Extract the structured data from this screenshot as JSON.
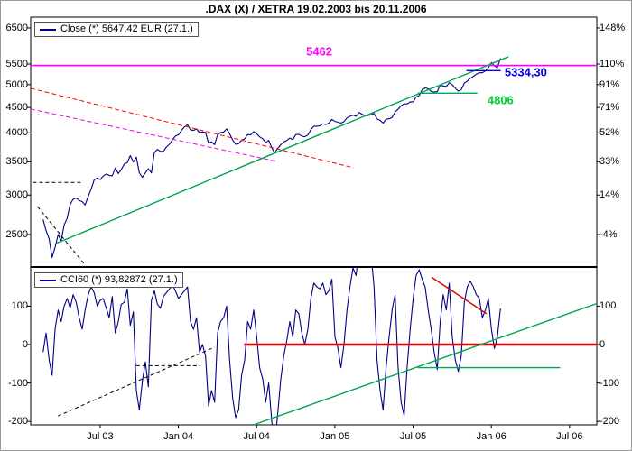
{
  "title": ".DAX (X) / XETRA 19.02.2003 bis 20.11.2006",
  "colors": {
    "price_line": "#000080",
    "cci_line": "#000080",
    "magenta": "#ff00ff",
    "green_line": "#00a651",
    "green_label": "#00cc33",
    "red": "#ff0000",
    "dark_red": "#cc0000",
    "blue_label": "#0000ee",
    "axis_text": "#000000"
  },
  "x_axis": {
    "xlim": [
      2003.056,
      2006.674
    ],
    "ticks": [
      {
        "t": 2003.5,
        "label": "Jul 03"
      },
      {
        "t": 2004.0,
        "label": "Jan 04"
      },
      {
        "t": 2004.5,
        "label": "Jul 04"
      },
      {
        "t": 2005.0,
        "label": "Jan 05"
      },
      {
        "t": 2005.5,
        "label": "Jul 05"
      },
      {
        "t": 2006.0,
        "label": "Jan 06"
      },
      {
        "t": 2006.5,
        "label": "Jul 06"
      }
    ]
  },
  "chart_data": [
    {
      "type": "line",
      "name": "dax-close",
      "title": ".DAX (X) / XETRA 19.02.2003 bis 20.11.2006",
      "legend": "Close (*) 5647,42 EUR (27.1.)",
      "last_value": "5647,42 EUR",
      "last_date": "27.1.",
      "yscale": "log",
      "ylim": [
        2151,
        6832
      ],
      "x_start": 2003.135,
      "x_step": 0.0192308,
      "line_color": "#000080",
      "y_ticks": [
        {
          "v": 6500,
          "left": "6500",
          "right": "148%"
        },
        {
          "v": 5500,
          "left": "5500",
          "right": "110%"
        },
        {
          "v": 5000,
          "left": "5000",
          "right": "91%"
        },
        {
          "v": 4500,
          "left": "4500",
          "right": "71%"
        },
        {
          "v": 4000,
          "left": "4000",
          "right": "52%"
        },
        {
          "v": 3500,
          "left": "3500",
          "right": "33%"
        },
        {
          "v": 3000,
          "left": "3000",
          "right": "14%"
        },
        {
          "v": 2500,
          "left": "2500",
          "right": "-4%"
        }
      ],
      "values": [
        2679,
        2547,
        2450,
        2247,
        2356,
        2501,
        2423,
        2610,
        2697,
        2871,
        2942,
        2958,
        2927,
        2911,
        2866,
        2982,
        3084,
        3219,
        3246,
        3221,
        3276,
        3307,
        3287,
        3279,
        3399,
        3314,
        3376,
        3465,
        3484,
        3601,
        3494,
        3576,
        3326,
        3256,
        3324,
        3388,
        3324,
        3655,
        3706,
        3670,
        3674,
        3746,
        3796,
        3876,
        3940,
        3965,
        4045,
        4111,
        4151,
        4058,
        4045,
        4074,
        4003,
        4018,
        4007,
        3813,
        3836,
        3788,
        3966,
        4007,
        4016,
        4075,
        3985,
        3869,
        3794,
        3803,
        3867,
        3890,
        3971,
        3963,
        4022,
        3983,
        3926,
        3895,
        3823,
        3866,
        3731,
        3646,
        3721,
        3786,
        3837,
        3861,
        3906,
        3875,
        3968,
        3972,
        3942,
        3929,
        3960,
        4063,
        4126,
        4126,
        4133,
        4171,
        4158,
        4185,
        4256,
        4217,
        4204,
        4184,
        4212,
        4288,
        4318,
        4343,
        4318,
        4394,
        4363,
        4324,
        4336,
        4348,
        4376,
        4265,
        4239,
        4184,
        4260,
        4269,
        4298,
        4406,
        4463,
        4534,
        4575,
        4572,
        4617,
        4613,
        4722,
        4755,
        4886,
        4921,
        4906,
        4842,
        4833,
        4840,
        4988,
        4969,
        4955,
        5044,
        4998,
        4916,
        4853,
        4886,
        5035,
        5082,
        5149,
        5193,
        5249,
        5283,
        5282,
        5328,
        5408,
        5536,
        5454,
        5410,
        5647.42
      ],
      "overlays": [
        {
          "name": "resistance-line-5462",
          "x1": 2003.056,
          "y1": 5462,
          "x2": 2006.674,
          "y2": 5462,
          "color": "#ff00ff",
          "width": 1.6,
          "dash": ""
        },
        {
          "name": "green-uptrend-line",
          "x1": 2003.22,
          "y1": 2400,
          "x2": 2006.11,
          "y2": 5690,
          "color": "#00a651",
          "width": 1.4,
          "dash": ""
        },
        {
          "name": "green-support-4806",
          "x1": 2005.53,
          "y1": 4806,
          "x2": 2005.91,
          "y2": 4806,
          "color": "#00a651",
          "width": 1.4,
          "dash": ""
        },
        {
          "name": "blue-support-5334",
          "x1": 2005.84,
          "y1": 5334.3,
          "x2": 2006.06,
          "y2": 5334.3,
          "color": "#0000ee",
          "width": 1.4,
          "dash": ""
        },
        {
          "name": "red-downtrend-dashed",
          "x1": 2003.056,
          "y1": 4915,
          "x2": 2005.12,
          "y2": 3404,
          "color": "#ff0000",
          "width": 1,
          "dash": "5,3"
        },
        {
          "name": "magenta-downtrend-dashed",
          "x1": 2003.056,
          "y1": 4465,
          "x2": 2004.63,
          "y2": 3504,
          "color": "#ee00ee",
          "width": 1,
          "dash": "5,3"
        },
        {
          "name": "black-dashed-horizontal",
          "x1": 2003.07,
          "y1": 3180,
          "x2": 2003.39,
          "y2": 3180,
          "color": "#000000",
          "width": 1,
          "dash": "4,3"
        },
        {
          "name": "black-dashed-decline",
          "x1": 2003.1,
          "y1": 2845,
          "x2": 2003.4,
          "y2": 2178,
          "color": "#000000",
          "width": 1,
          "dash": "4,3"
        }
      ],
      "annotations": [
        {
          "name": "label-5462",
          "text": "5462",
          "color": "#ff00ff",
          "t": 2004.9,
          "v": 5830,
          "align": "center"
        },
        {
          "name": "label-5334-30",
          "text": "5334,30",
          "color": "#0000ee",
          "t": 2006.085,
          "v": 5300,
          "align": "left"
        },
        {
          "name": "label-4806",
          "text": "4806",
          "color": "#00cc33",
          "t": 2005.975,
          "v": 4650,
          "align": "left"
        }
      ]
    },
    {
      "type": "line",
      "name": "cci60",
      "legend": "CCI60 (*) 93,82872 (27.1.)",
      "last_value": "93,82872",
      "last_date": "27.1.",
      "yscale": "linear",
      "ylim": [
        -209,
        202
      ],
      "x_start": 2003.135,
      "x_step": 0.0192308,
      "line_color": "#000080",
      "y_ticks": [
        {
          "v": 100,
          "left": "100",
          "right": "100"
        },
        {
          "v": 0,
          "left": "0",
          "right": "0"
        },
        {
          "v": -100,
          "left": "-100",
          "right": "-100"
        },
        {
          "v": -200,
          "left": "-200",
          "right": "-200"
        }
      ],
      "values": [
        -20,
        30,
        -40,
        -80,
        40,
        90,
        60,
        100,
        120,
        95,
        130,
        110,
        70,
        40,
        90,
        130,
        150,
        135,
        100,
        115,
        120,
        95,
        70,
        125,
        30,
        60,
        105,
        110,
        145,
        50,
        85,
        -120,
        -170,
        -95,
        -45,
        -110,
        115,
        140,
        105,
        95,
        125,
        135,
        145,
        155,
        140,
        120,
        130,
        140,
        150,
        60,
        40,
        70,
        -20,
        0,
        -30,
        -160,
        -120,
        -150,
        30,
        60,
        70,
        100,
        -40,
        -140,
        -190,
        -170,
        -80,
        -40,
        60,
        40,
        90,
        20,
        -60,
        -90,
        -150,
        -100,
        -200,
        -260,
        -180,
        -90,
        -30,
        10,
        60,
        20,
        90,
        80,
        30,
        0,
        40,
        120,
        160,
        150,
        145,
        160,
        130,
        140,
        170,
        20,
        -10,
        -60,
        0,
        90,
        150,
        200,
        180,
        240,
        260,
        230,
        250,
        235,
        150,
        -40,
        -120,
        -170,
        -60,
        20,
        90,
        130,
        -60,
        -150,
        -185,
        -60,
        40,
        120,
        180,
        195,
        170,
        150,
        90,
        40,
        -20,
        -65,
        60,
        130,
        90,
        160,
        20,
        -40,
        -70,
        -30,
        110,
        150,
        165,
        150,
        130,
        120,
        70,
        90,
        120,
        40,
        -10,
        20,
        93.83
      ],
      "overlays": [
        {
          "name": "red-zero-line",
          "x1": 2004.42,
          "y1": 0,
          "x2": 2006.674,
          "y2": 0,
          "color": "#dd0000",
          "width": 2.5,
          "dash": ""
        },
        {
          "name": "green-uptrend-cci",
          "x1": 2004.48,
          "y1": -209,
          "x2": 2006.674,
          "y2": 107,
          "color": "#00a651",
          "width": 1.4,
          "dash": ""
        },
        {
          "name": "green-level-minus60",
          "x1": 2005.53,
          "y1": -60,
          "x2": 2006.44,
          "y2": -60,
          "color": "#00a651",
          "width": 1.4,
          "dash": ""
        },
        {
          "name": "red-declining-peaks",
          "x1": 2005.62,
          "y1": 175,
          "x2": 2005.97,
          "y2": 80,
          "color": "#cc0000",
          "width": 1.4,
          "dash": ""
        },
        {
          "name": "black-dashed-ascending",
          "x1": 2003.23,
          "y1": -186,
          "x2": 2004.23,
          "y2": -7,
          "color": "#000000",
          "width": 1,
          "dash": "4,3"
        },
        {
          "name": "black-dashed-level",
          "x1": 2003.73,
          "y1": -55,
          "x2": 2004.14,
          "y2": -55,
          "color": "#000000",
          "width": 1,
          "dash": "4,3"
        }
      ],
      "annotations": []
    }
  ]
}
